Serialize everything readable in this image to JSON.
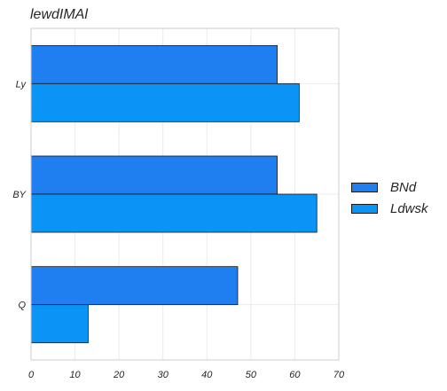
{
  "chart_data": {
    "type": "bar",
    "orientation": "horizontal",
    "title": "lewdIMAl",
    "categories": [
      "Q",
      "BY",
      "Ly"
    ],
    "series": [
      {
        "name": "BNd",
        "values": [
          47,
          56,
          56
        ],
        "color": "#1f7ef0"
      },
      {
        "name": "Ldwsk",
        "values": [
          13,
          65,
          61
        ],
        "color": "#0a94f5"
      }
    ],
    "xlim": [
      0,
      70
    ],
    "xticks": [
      "0",
      "10",
      "20",
      "30",
      "40",
      "50",
      "60",
      "70"
    ],
    "grid": true,
    "legend_position": "right"
  }
}
